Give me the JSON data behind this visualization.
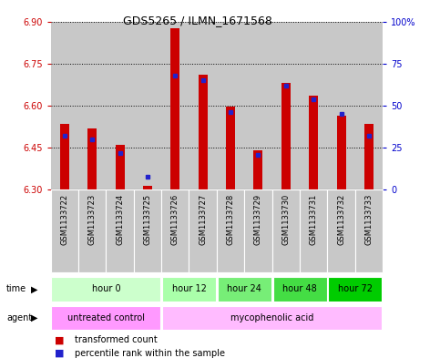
{
  "title": "GDS5265 / ILMN_1671568",
  "samples": [
    "GSM1133722",
    "GSM1133723",
    "GSM1133724",
    "GSM1133725",
    "GSM1133726",
    "GSM1133727",
    "GSM1133728",
    "GSM1133729",
    "GSM1133730",
    "GSM1133731",
    "GSM1133732",
    "GSM1133733"
  ],
  "transformed_count": [
    6.535,
    6.52,
    6.46,
    6.315,
    6.875,
    6.71,
    6.595,
    6.44,
    6.68,
    6.635,
    6.565,
    6.535
  ],
  "percentile_rank": [
    32,
    30,
    22,
    8,
    68,
    65,
    46,
    21,
    62,
    54,
    45,
    32
  ],
  "ylim_left": [
    6.3,
    6.9
  ],
  "ylim_right": [
    0,
    100
  ],
  "yticks_left": [
    6.3,
    6.45,
    6.6,
    6.75,
    6.9
  ],
  "yticks_right": [
    0,
    25,
    50,
    75,
    100
  ],
  "ytick_labels_right": [
    "0",
    "25",
    "50",
    "75",
    "100%"
  ],
  "bar_color": "#cc0000",
  "dot_color": "#2222cc",
  "baseline": 6.3,
  "time_groups": [
    {
      "label": "hour 0",
      "start": 0,
      "end": 4,
      "color": "#ccffcc"
    },
    {
      "label": "hour 12",
      "start": 4,
      "end": 6,
      "color": "#aaffaa"
    },
    {
      "label": "hour 24",
      "start": 6,
      "end": 8,
      "color": "#77ee77"
    },
    {
      "label": "hour 48",
      "start": 8,
      "end": 10,
      "color": "#44dd44"
    },
    {
      "label": "hour 72",
      "start": 10,
      "end": 12,
      "color": "#00cc00"
    }
  ],
  "agent_groups": [
    {
      "label": "untreated control",
      "start": 0,
      "end": 4,
      "color": "#ff99ff"
    },
    {
      "label": "mycophenolic acid",
      "start": 4,
      "end": 12,
      "color": "#ffbbff"
    }
  ],
  "sample_bg": "#c8c8c8",
  "left_tick_color": "#cc0000",
  "right_tick_color": "#0000cc"
}
